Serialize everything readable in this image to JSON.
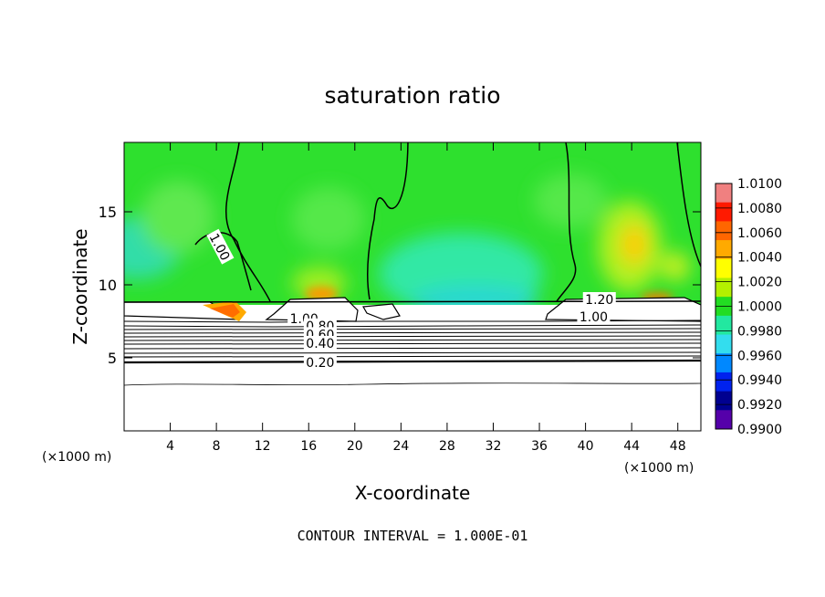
{
  "chart_data": {
    "type": "heatmap",
    "title": "saturation ratio",
    "xlabel": "X-coordinate",
    "ylabel": "Z-coordinate",
    "x_unit": "(×1000 m)",
    "y_unit": "(×1000 m)",
    "xlim": [
      0,
      50
    ],
    "ylim": [
      0,
      19.75
    ],
    "x_ticks": [
      4,
      8,
      12,
      16,
      20,
      24,
      28,
      32,
      36,
      40,
      44,
      48
    ],
    "y_ticks": [
      5,
      10,
      15
    ],
    "footer": "CONTOUR INTERVAL = 1.000E-01",
    "colorbar": {
      "labels": [
        "1.0100",
        "1.0080",
        "1.0060",
        "1.0040",
        "1.0020",
        "1.0000",
        "0.9980",
        "0.9960",
        "0.9940",
        "0.9920",
        "0.9900"
      ],
      "colors": [
        "#f08080",
        "#ff1a00",
        "#ff6600",
        "#ffaa00",
        "#ffff00",
        "#b4f000",
        "#22dd22",
        "#22e8a0",
        "#33ddee",
        "#0088ff",
        "#0022ee",
        "#000090",
        "#5500aa"
      ]
    },
    "contour_labels": [
      {
        "text": "1.00",
        "x": 8.3,
        "z": 12.6
      },
      {
        "text": "1.20",
        "x": 41.2,
        "z": 9.0
      },
      {
        "text": "1.00",
        "x": 40.7,
        "z": 7.8
      },
      {
        "text": "1.00",
        "x": 15.6,
        "z": 7.7
      },
      {
        "text": "0.80",
        "x": 17.0,
        "z": 7.2
      },
      {
        "text": "0.60",
        "x": 17.0,
        "z": 6.6
      },
      {
        "text": "0.40",
        "x": 17.0,
        "z": 6.0
      },
      {
        "text": "0.20",
        "x": 17.0,
        "z": 4.7
      }
    ]
  }
}
